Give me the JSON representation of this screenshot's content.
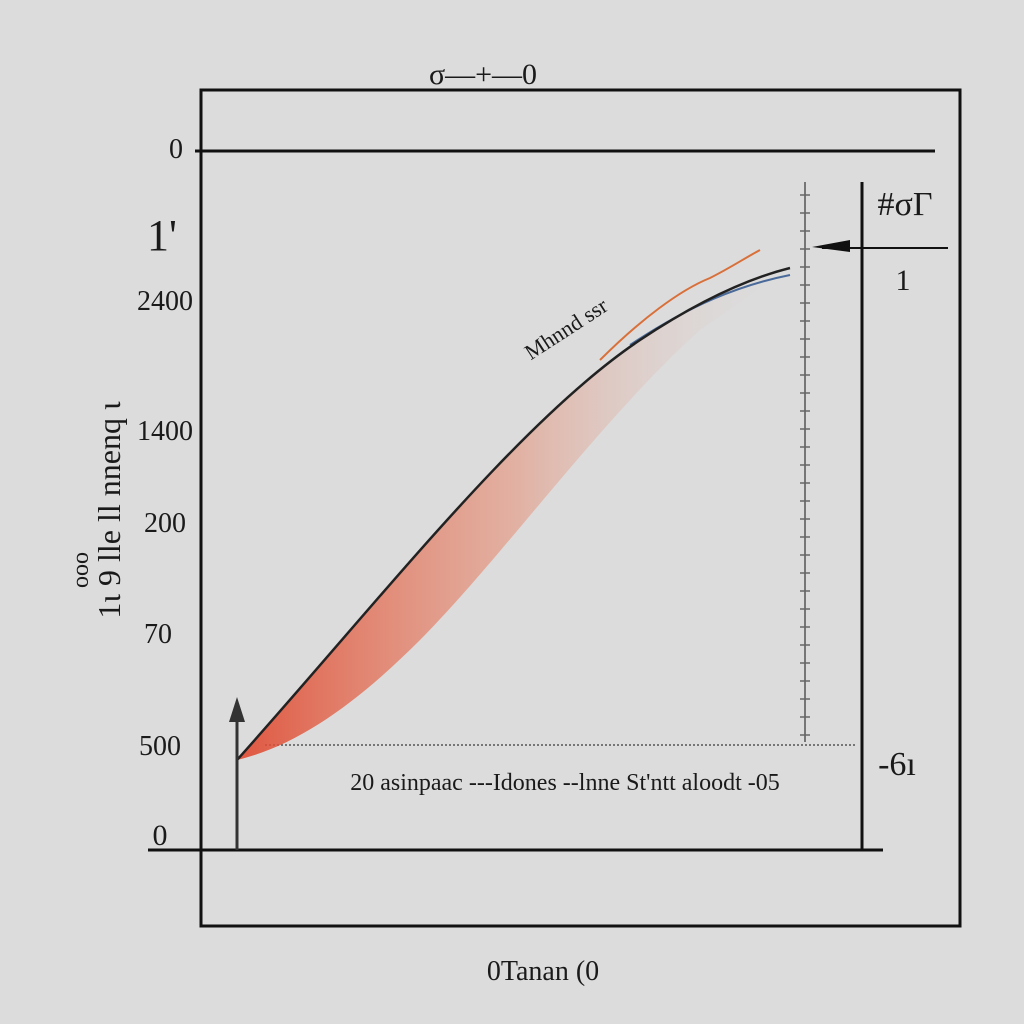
{
  "header": {
    "title": "σ—+—0"
  },
  "left_labels": [
    "0",
    "1'",
    "2400",
    "1400",
    "200",
    "70",
    "500",
    "0"
  ],
  "y_axis_label": [
    "1ɩ 9 lle ll nnenq ɩ",
    "ooo"
  ],
  "annotation": "Mhnnd ssr",
  "legend_text": "20 asinpaac ---Idones --lnne St'ntt aloodt -05",
  "right_labels": [
    "#σΓ",
    "1",
    "-6ı"
  ],
  "footer": "0Tanan (0"
}
